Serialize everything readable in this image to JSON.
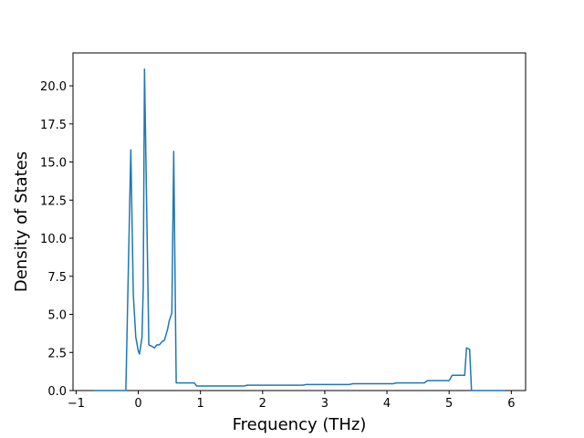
{
  "chart_data": {
    "type": "line",
    "x_label": "Frequency (THz)",
    "y_label": "Density of States",
    "x": [
      -0.72,
      -0.2,
      -0.12,
      -0.08,
      -0.04,
      0.0,
      0.02,
      0.06,
      0.08,
      0.1,
      0.17,
      0.22,
      0.26,
      0.3,
      0.34,
      0.38,
      0.42,
      0.47,
      0.5,
      0.54,
      0.57,
      0.61,
      0.9,
      0.94,
      1.7,
      1.75,
      2.65,
      2.7,
      3.4,
      3.45,
      4.1,
      4.15,
      4.6,
      4.65,
      5.0,
      5.05,
      5.25,
      5.28,
      5.33,
      5.36,
      5.9
    ],
    "series": [
      {
        "color": "#1f77b4",
        "values": [
          0,
          0,
          15.8,
          6.3,
          3.5,
          2.6,
          2.4,
          3.5,
          6.8,
          21.1,
          3.0,
          2.9,
          2.8,
          3.0,
          3.0,
          3.2,
          3.3,
          4.0,
          4.6,
          5.1,
          15.7,
          0.5,
          0.5,
          0.3,
          0.3,
          0.35,
          0.35,
          0.4,
          0.4,
          0.45,
          0.45,
          0.5,
          0.5,
          0.65,
          0.65,
          1.0,
          1.0,
          2.8,
          2.7,
          0,
          0
        ]
      }
    ],
    "xlim": [
      -1.05,
      6.23
    ],
    "ylim": [
      0,
      22.16
    ],
    "xticks": [
      {
        "value": -1,
        "label": "−1"
      },
      0,
      1,
      2,
      3,
      4,
      5,
      6
    ],
    "yticks": [
      {
        "value": 0,
        "label": "0.0"
      },
      2.5,
      {
        "value": 5,
        "label": "5.0"
      },
      7.5,
      {
        "value": 10,
        "label": "10.0"
      },
      12.5,
      {
        "value": 15,
        "label": "15.0"
      },
      17.5,
      {
        "value": 20,
        "label": "20.0"
      }
    ],
    "grid": false
  }
}
